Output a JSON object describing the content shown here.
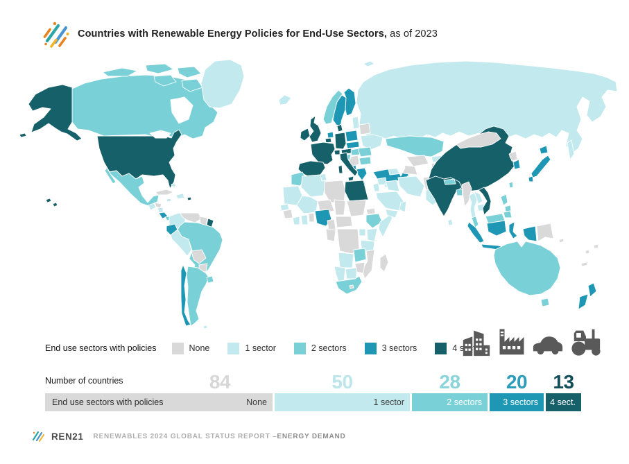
{
  "header": {
    "title_bold": "Countries with Renewable Energy Policies for End-Use Sectors,",
    "title_regular": " as of 2023"
  },
  "colors": {
    "none": "#d9d9d9",
    "s1": "#c2e9ed",
    "s2": "#79d1d7",
    "s3": "#1e97b5",
    "s4": "#156069",
    "icon": "#595959"
  },
  "brand_colors": {
    "teal": "#2aa5a5",
    "blue": "#4a96d2",
    "orange": "#e8821e",
    "yellow": "#f0b429"
  },
  "legend": {
    "label": "End use sectors with policies",
    "items": [
      {
        "key": "none",
        "label": "None"
      },
      {
        "key": "s1",
        "label": "1 sector"
      },
      {
        "key": "s2",
        "label": "2 sectors"
      },
      {
        "key": "s3",
        "label": "3 sectors"
      },
      {
        "key": "s4",
        "label": "4 sectors"
      }
    ]
  },
  "sector_icons": [
    "buildings-icon",
    "factory-icon",
    "car-icon",
    "tractor-icon"
  ],
  "bar": {
    "row_label": "Number of countries",
    "bar_label": "End use sectors with policies",
    "segments": [
      {
        "key": "none",
        "label": "None",
        "count": 84,
        "num_color": "#d7d7d7"
      },
      {
        "key": "s1",
        "label": "1 sector",
        "count": 50,
        "num_color": "#bde6eb"
      },
      {
        "key": "s2",
        "label": "2 sectors",
        "count": 28,
        "num_color": "#8bd4d9"
      },
      {
        "key": "s3",
        "label": "3 sectors",
        "count": 20,
        "num_color": "#2b9dba"
      },
      {
        "key": "s4",
        "label": "4 sect.",
        "count": 13,
        "num_color": "#134f58"
      }
    ]
  },
  "chart_data": {
    "type": "bar",
    "subtype": "horizontal-stacked-choropleth-summary",
    "title": "Countries with Renewable Energy Policies for End-Use Sectors, as of 2023",
    "categories": [
      "None",
      "1 sector",
      "2 sectors",
      "3 sectors",
      "4 sectors"
    ],
    "values": [
      84,
      50,
      28,
      20,
      13
    ],
    "ylabel": "Number of countries",
    "legend_position": "above-bar"
  },
  "footer": {
    "brand": "REN21",
    "report": "RENEWABLES 2024 GLOBAL STATUS REPORT – ",
    "section": "ENERGY DEMAND"
  },
  "map": {
    "countries": {
      "russia": "s1",
      "svalbard": "s1",
      "canada": "s2",
      "greenland": "s1",
      "usa": "s4",
      "mexico": "s2",
      "guatemala": "s1",
      "honduras": "none",
      "nicaragua": "s1",
      "costa_rica": "s3",
      "panama": "s2",
      "cuba": "none",
      "hispaniola": "s1",
      "jamaica": "s1",
      "bahamas": "s1",
      "colombia": "s1",
      "venezuela": "none",
      "guyana": "none",
      "french_guiana": "s4",
      "ecuador": "s3",
      "peru": "s1",
      "brazil": "s2",
      "bolivia": "none",
      "paraguay": "none",
      "chile": "s3",
      "argentina": "s2",
      "uruguay": "s2",
      "falklands": "s1",
      "iceland": "s1",
      "ireland": "s4",
      "uk": "s4",
      "norway": "s2",
      "sweden": "s3",
      "finland": "s3",
      "baltics": "s1",
      "belarus": "none",
      "ukraine": "s1",
      "poland": "s3",
      "denmark": "s4",
      "netherlands": "s3",
      "belgium": "s4",
      "germany": "s4",
      "czech_slovakia": "s3",
      "austria": "s4",
      "switzerland": "s4",
      "france": "s4",
      "hungary": "s2",
      "croatia": "s2",
      "serbia": "none",
      "romania": "s2",
      "bulgaria": "s2",
      "albania": "s3",
      "greece": "s3",
      "italy": "s4",
      "spain_portugal": "s4",
      "turkey": "s3",
      "cyprus": "s1",
      "morocco": "s2",
      "tunisia": "s1",
      "algeria": "s1",
      "libya": "none",
      "egypt": "s4",
      "mauritania": "s1",
      "mali": "s1",
      "niger": "none",
      "chad": "none",
      "sudan": "none",
      "eritrea": "none",
      "senegal": "s1",
      "guinea": "none",
      "ivory_coast": "s1",
      "ghana": "s1",
      "togo_benin": "none",
      "nigeria": "s3",
      "cameroon": "none",
      "central_african_rep": "none",
      "ethiopia": "s2",
      "somalia": "s1",
      "uganda": "s1",
      "kenya": "s1",
      "dr_congo": "none",
      "congo_gabon": "none",
      "tanzania": "s1",
      "angola": "s1",
      "zambia": "s2",
      "mozambique": "none",
      "zimbabwe": "none",
      "botswana": "s1",
      "namibia": "s1",
      "south_africa": "s2",
      "lesotho": "none",
      "madagascar": "none",
      "israel_jordan": "s1",
      "syria": "s1",
      "iraq": "s1",
      "saudi_arabia": "s1",
      "yemen": "s1",
      "oman": "s1",
      "iran": "s1",
      "afghanistan": "none",
      "pakistan": "s1",
      "caucasus": "s1",
      "kazakhstan": "s2",
      "uzbekistan": "none",
      "turkmenistan": "none",
      "kyrgyzstan": "s1",
      "tajikistan": "none",
      "china": "s4",
      "mongolia": "none",
      "india": "s4",
      "nepal": "s2",
      "bangladesh": "s2",
      "sri_lanka": "s1",
      "myanmar": "none",
      "thailand": "s1",
      "laos": "s1",
      "cambodia": "s1",
      "vietnam": "s4",
      "taiwan": "s2",
      "north_korea": "none",
      "south_korea": "s3",
      "japan": "s3",
      "philippines": "s2",
      "malaysia": "s2",
      "indonesia": "s3",
      "papua_new_guinea": "none",
      "solomon_islands": "none",
      "australia": "s2",
      "new_zealand": "s3",
      "fiji": "none",
      "vanuatu": "none",
      "new_caledonia": "none"
    }
  }
}
